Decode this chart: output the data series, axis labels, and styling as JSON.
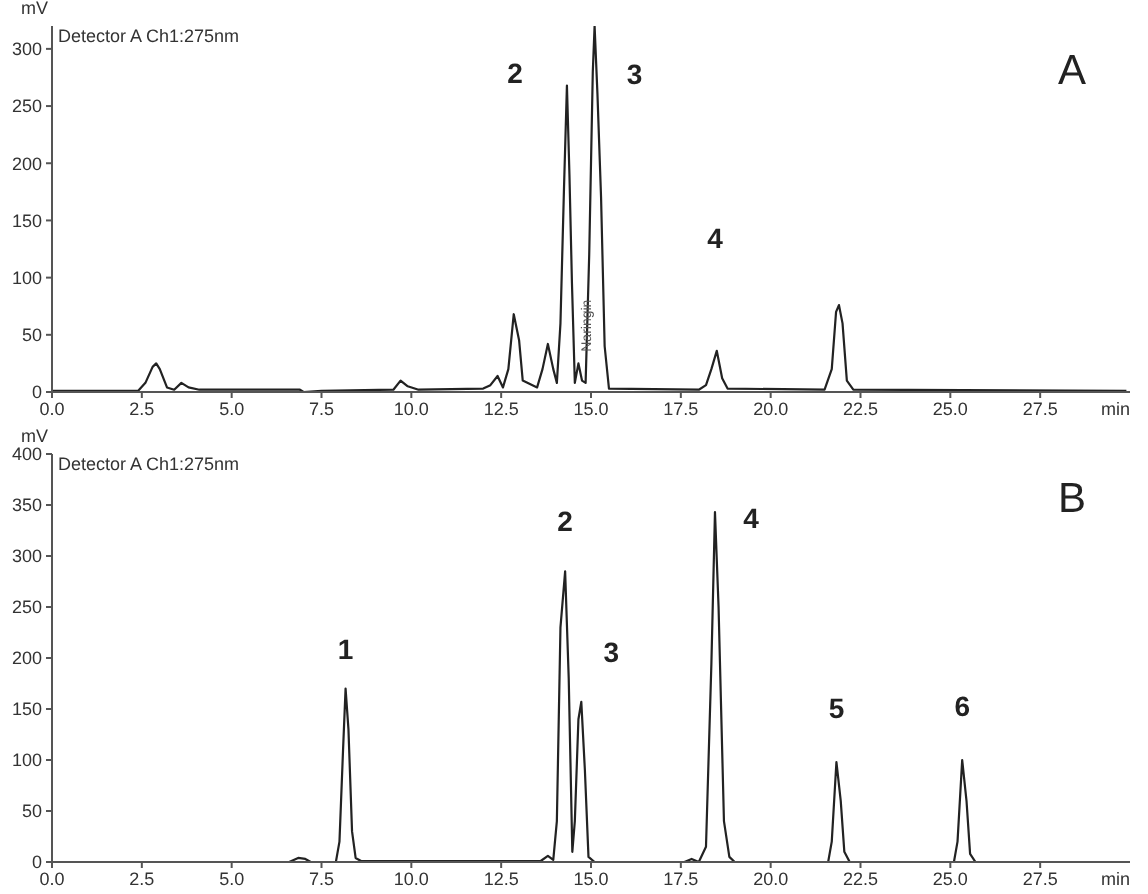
{
  "chart_data": [
    {
      "type": "line",
      "title": "A",
      "xlabel": "min",
      "ylabel": "mV",
      "annotations": [
        "Detector A Ch1:275nm",
        {
          "text": "Naringin",
          "x": 14.9,
          "y": 58
        },
        {
          "text": "2",
          "x": 14.33,
          "y": 268
        },
        {
          "text": "3",
          "x": 15.1,
          "y": 320
        },
        "4"
      ],
      "x": [
        0,
        2.4,
        2.6,
        2.8,
        2.9,
        3.0,
        3.2,
        3.4,
        3.6,
        3.8,
        4.1,
        6.9,
        7.0,
        7.5,
        9.5,
        9.7,
        9.9,
        10.2,
        12.0,
        12.2,
        12.4,
        12.55,
        12.7,
        12.85,
        13.0,
        13.1,
        13.5,
        13.65,
        13.8,
        13.95,
        14.05,
        14.15,
        14.25,
        14.33,
        14.4,
        14.47,
        14.55,
        14.65,
        14.75,
        14.85,
        14.95,
        15.05,
        15.1,
        15.18,
        15.28,
        15.38,
        15.5,
        18.0,
        18.2,
        18.35,
        18.5,
        18.65,
        18.8,
        21.5,
        21.7,
        21.82,
        21.9,
        22.0,
        22.12,
        22.3,
        29.9
      ],
      "series": [
        {
          "color": "#222222",
          "values": [
            1,
            1,
            8,
            22,
            25,
            20,
            4,
            2,
            8,
            4,
            2,
            2,
            0,
            1,
            2,
            10,
            5,
            2,
            3,
            6,
            14,
            4,
            20,
            68,
            45,
            10,
            4,
            20,
            42,
            20,
            8,
            60,
            180,
            268,
            190,
            95,
            8,
            25,
            10,
            8,
            120,
            280,
            320,
            260,
            170,
            40,
            3,
            2,
            6,
            20,
            36,
            12,
            3,
            2,
            20,
            70,
            76,
            60,
            10,
            2,
            1
          ]
        }
      ],
      "xlim": [
        0,
        30
      ],
      "xticks": [
        {
          "value": 0,
          "label": "0.0"
        },
        2.5,
        {
          "value": 5,
          "label": "5.0"
        },
        7.5,
        {
          "value": 10,
          "label": "10.0"
        },
        12.5,
        {
          "value": 15,
          "label": "15.0"
        },
        17.5,
        {
          "value": 20,
          "label": "20.0"
        },
        22.5,
        {
          "value": 25,
          "label": "25.0"
        },
        27.5
      ],
      "ylim": [
        0,
        320
      ],
      "yticks": [
        0,
        50,
        100,
        150,
        200,
        250,
        300
      ]
    },
    {
      "type": "line",
      "title": "B",
      "xlabel": "min",
      "ylabel": "mV",
      "annotations": [
        "Detector A Ch1:275nm",
        {
          "text": "1",
          "x": 8.17,
          "y": 170
        },
        {
          "text": "2",
          "x": 14.28,
          "y": 285
        },
        {
          "text": "3",
          "x": 14.73,
          "y": 157
        },
        {
          "text": "4",
          "x": 18.45,
          "y": 343
        },
        {
          "text": "5",
          "x": 21.83,
          "y": 98
        },
        {
          "text": "6",
          "x": 25.33,
          "y": 100
        }
      ],
      "x": [
        0,
        6.6,
        6.85,
        7.05,
        7.2,
        7.9,
        8.0,
        8.1,
        8.17,
        8.25,
        8.35,
        8.45,
        8.6,
        13.6,
        13.8,
        13.95,
        14.05,
        14.15,
        14.28,
        14.38,
        14.48,
        14.55,
        14.65,
        14.73,
        14.83,
        14.93,
        15.1,
        17.6,
        17.8,
        18.0,
        18.2,
        18.35,
        18.45,
        18.55,
        18.7,
        18.85,
        19.0,
        21.6,
        21.7,
        21.83,
        21.95,
        22.05,
        22.2,
        25.1,
        25.2,
        25.33,
        25.45,
        25.55,
        25.7,
        29.9
      ],
      "series": [
        {
          "color": "#222222",
          "values": [
            0,
            0,
            4,
            3,
            0,
            0,
            20,
            110,
            170,
            130,
            30,
            4,
            1,
            1,
            6,
            2,
            40,
            230,
            285,
            180,
            10,
            40,
            140,
            157,
            90,
            5,
            0,
            0,
            3,
            0,
            15,
            194,
            343,
            250,
            40,
            5,
            0,
            0,
            20,
            98,
            60,
            10,
            0,
            0,
            20,
            100,
            60,
            8,
            0,
            0
          ]
        }
      ],
      "xlim": [
        0,
        30
      ],
      "xticks": [
        {
          "value": 0,
          "label": "0.0"
        },
        2.5,
        {
          "value": 5,
          "label": "5.0"
        },
        7.5,
        {
          "value": 10,
          "label": "10.0"
        },
        12.5,
        {
          "value": 15,
          "label": "15.0"
        },
        17.5,
        {
          "value": 20,
          "label": "20.0"
        },
        22.5,
        {
          "value": 25,
          "label": "25.0"
        },
        27.5
      ],
      "ylim": [
        0,
        400
      ],
      "yticks": [
        0,
        50,
        100,
        150,
        200,
        250,
        300,
        350,
        400
      ]
    }
  ]
}
